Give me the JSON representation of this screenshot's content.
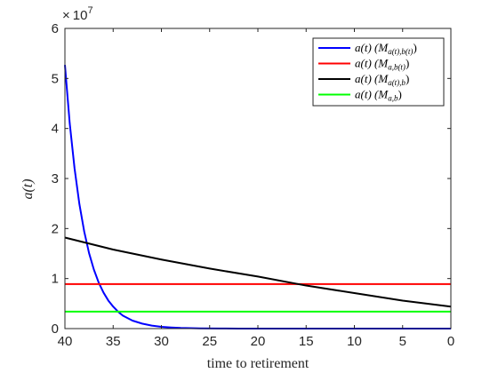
{
  "chart_data": {
    "type": "line",
    "xlabel": "time to retirement",
    "ylabel": "a(t)",
    "y_exponent_label": "× 10^7",
    "y_exponent_base": "10",
    "y_exponent_power": "7",
    "xlim": [
      0,
      40
    ],
    "x_reversed": true,
    "ylim": [
      0,
      6
    ],
    "x_ticks": [
      40,
      35,
      30,
      25,
      20,
      15,
      10,
      5,
      0
    ],
    "y_ticks": [
      0,
      1,
      2,
      3,
      4,
      5,
      6
    ],
    "grid": false,
    "legend_position": "top-right",
    "series": [
      {
        "name": "a(t) (M_{a(t),b(t)})",
        "color": "#0000ff",
        "x": [
          40,
          39.5,
          39,
          38.5,
          38,
          37.5,
          37,
          36.5,
          36,
          35.5,
          35,
          34.5,
          34,
          33,
          32,
          31,
          30,
          29,
          28,
          26,
          24,
          22,
          20,
          15,
          10,
          5,
          0
        ],
        "values": [
          5.27,
          4.1,
          3.2,
          2.49,
          1.94,
          1.51,
          1.18,
          0.92,
          0.72,
          0.56,
          0.44,
          0.34,
          0.26,
          0.16,
          0.1,
          0.06,
          0.035,
          0.022,
          0.013,
          0.005,
          0.002,
          0.001,
          0,
          0,
          0,
          0,
          0
        ]
      },
      {
        "name": "a(t) (M_{a,b(t)})",
        "color": "#ff0000",
        "x": [
          40,
          0
        ],
        "values": [
          0.89,
          0.89
        ]
      },
      {
        "name": "a(t) (M_{a(t),b})",
        "color": "#000000",
        "x": [
          40,
          35,
          30,
          25,
          20,
          15,
          10,
          5,
          0
        ],
        "values": [
          1.82,
          1.58,
          1.38,
          1.2,
          1.04,
          0.86,
          0.71,
          0.56,
          0.44
        ]
      },
      {
        "name": "a(t) (M_{a,b})",
        "color": "#00ff00",
        "x": [
          40,
          0
        ],
        "values": [
          0.34,
          0.34
        ]
      }
    ]
  },
  "legend": [
    {
      "pre": "a(t)  (M",
      "sub": "a(t),b(t)",
      "post": ")"
    },
    {
      "pre": "a(t)  (M",
      "sub": "a,b(t)",
      "post": ")"
    },
    {
      "pre": "a(t)  (M",
      "sub": "a(t),b",
      "post": ")"
    },
    {
      "pre": "a(t)  (M",
      "sub": "a,b",
      "post": ")"
    }
  ]
}
